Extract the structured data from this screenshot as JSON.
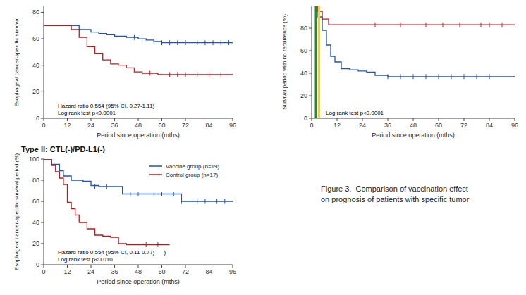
{
  "chart_data": [
    {
      "type": "line",
      "ylabel": "Esophageal cancer-specific survival",
      "xlabel": "Period since operation (mths)",
      "xlim": [
        0,
        96
      ],
      "ylim": [
        0,
        85
      ],
      "xticks": [
        0,
        12,
        24,
        36,
        48,
        60,
        72,
        84,
        96
      ],
      "yticks": [
        0,
        20,
        40,
        60,
        80
      ],
      "annotation": "Hazard ratio 0.554 (95% CI, 0.27-1.11)\nLog rank test p<0.0001",
      "series": [
        {
          "type": "step",
          "color": "#2255aa",
          "x": [
            0,
            14,
            18,
            24,
            28,
            32,
            36,
            42,
            48,
            52,
            56,
            60,
            64,
            70,
            76,
            84,
            88,
            90,
            94,
            96
          ],
          "values": [
            70,
            70,
            67,
            65,
            64,
            63,
            62,
            61,
            60,
            59,
            58,
            57,
            57,
            57,
            57,
            57,
            57,
            57,
            57,
            57
          ]
        },
        {
          "type": "step",
          "color": "#aa2222",
          "x": [
            0,
            14,
            18,
            22,
            26,
            30,
            34,
            38,
            42,
            46,
            50,
            54,
            58,
            64,
            70,
            76,
            84,
            90,
            96
          ],
          "values": [
            70,
            67,
            61,
            54,
            49,
            44,
            41,
            40,
            38,
            35,
            34,
            34,
            33,
            33,
            33,
            33,
            33,
            33,
            33
          ]
        },
        {
          "type": "scatter",
          "marker": "|",
          "color": "#2255aa",
          "x": [
            46,
            50,
            56,
            60,
            64,
            68,
            72,
            78,
            82,
            86,
            90,
            94
          ],
          "values": [
            61,
            60,
            58,
            57,
            57,
            57,
            57,
            57,
            57,
            57,
            57,
            57
          ]
        },
        {
          "type": "scatter",
          "marker": "|",
          "color": "#aa2222",
          "x": [
            50,
            54,
            64,
            68,
            72,
            78,
            84,
            90
          ],
          "values": [
            34,
            34,
            33,
            33,
            33,
            33,
            33,
            33
          ]
        }
      ]
    },
    {
      "type": "line",
      "ylabel": "Survival period with no recurrence (%)",
      "xlabel": "Period since operation (mths)",
      "xlim": [
        0,
        96
      ],
      "ylim": [
        0,
        100
      ],
      "xticks": [
        0,
        12,
        24,
        36,
        48,
        60,
        72,
        84,
        96
      ],
      "yticks": [
        0,
        20,
        40,
        60,
        80
      ],
      "annotation": "Log rank test p<0.0001",
      "series": [
        {
          "type": "step",
          "color": "#2255aa",
          "x": [
            0,
            3,
            5,
            7,
            9,
            11,
            14,
            18,
            22,
            26,
            30,
            36,
            42,
            48,
            54,
            60,
            70,
            80,
            84,
            90,
            96
          ],
          "values": [
            100,
            90,
            78,
            65,
            55,
            50,
            44,
            43,
            42,
            41,
            38,
            37,
            37,
            37,
            37,
            37,
            37,
            37,
            37,
            37,
            37
          ]
        },
        {
          "type": "step",
          "color": "#aa2222",
          "x": [
            0,
            3,
            5,
            8,
            10,
            14,
            20,
            28,
            36,
            48,
            60,
            70,
            80,
            86,
            90,
            96
          ],
          "values": [
            100,
            95,
            88,
            83,
            83,
            83,
            83,
            83,
            83,
            83,
            83,
            83,
            83,
            83,
            83,
            83
          ]
        },
        {
          "type": "scatter",
          "marker": "|",
          "color": "#2255aa",
          "x": [
            36,
            42,
            48,
            54,
            60,
            66,
            72,
            78,
            84
          ],
          "values": [
            37,
            37,
            37,
            37,
            37,
            37,
            37,
            37,
            37
          ]
        },
        {
          "type": "scatter",
          "marker": "|",
          "color": "#aa2222",
          "x": [
            30,
            42,
            54,
            62,
            70,
            80,
            84,
            90
          ],
          "values": [
            83,
            83,
            83,
            83,
            83,
            83,
            83,
            83
          ]
        },
        {
          "type": "vline",
          "color": "#FFD700",
          "x": [
            3.5
          ]
        },
        {
          "type": "vline",
          "color": "#228B22",
          "x": [
            2.0
          ]
        }
      ]
    },
    {
      "type": "line",
      "title": "Type II: CTL(-)/PD-L1(-)",
      "ylabel": "Esophageal cancer-specific survival period (%)",
      "xlabel": "Period since operation (mths)",
      "xlim": [
        0,
        96
      ],
      "ylim": [
        0,
        100
      ],
      "xticks": [
        0,
        12,
        24,
        36,
        48,
        60,
        72,
        84,
        96
      ],
      "yticks": [
        0,
        20,
        40,
        60,
        80,
        100
      ],
      "annotation": "Hazard ratio 0.554 (95% CI, 0.11-0.77)      )\nLog rank test p<0.010",
      "legend": "upper right",
      "series": [
        {
          "name": "Vaccine group (n=19)",
          "type": "step",
          "color": "#2255aa",
          "x": [
            0,
            4,
            8,
            10,
            14,
            16,
            20,
            24,
            28,
            32,
            36,
            40,
            46,
            50,
            54,
            58,
            62,
            66,
            70,
            76,
            80,
            84,
            88,
            92,
            96
          ],
          "values": [
            100,
            95,
            89,
            84,
            80,
            80,
            79,
            75,
            74,
            74,
            74,
            67,
            67,
            67,
            67,
            67,
            67,
            67,
            60,
            60,
            60,
            60,
            60,
            60,
            60
          ]
        },
        {
          "name": "Control group (n=17)",
          "type": "step",
          "color": "#aa2222",
          "x": [
            0,
            4,
            6,
            8,
            10,
            12,
            14,
            16,
            18,
            22,
            26,
            30,
            34,
            38,
            42,
            46,
            50,
            54,
            58,
            60,
            64
          ],
          "values": [
            100,
            94,
            88,
            82,
            76,
            59,
            53,
            47,
            40,
            34,
            28,
            27,
            26,
            20,
            19,
            19,
            19,
            19,
            19,
            19,
            19
          ]
        },
        {
          "type": "scatter",
          "marker": "|",
          "color": "#2255aa",
          "x": [
            26,
            32,
            44,
            48,
            56,
            60,
            66,
            70,
            78,
            82,
            88,
            92
          ],
          "values": [
            74,
            74,
            67,
            67,
            67,
            67,
            67,
            60,
            60,
            60,
            60,
            60
          ]
        },
        {
          "type": "scatter",
          "marker": "|",
          "color": "#aa2222",
          "x": [
            52,
            58
          ],
          "values": [
            19,
            19
          ]
        }
      ]
    },
    {
      "type": "text",
      "annotation": "Figure 3.  Comparison of vaccination effect\non prognosis of patients with specific tumor"
    }
  ]
}
